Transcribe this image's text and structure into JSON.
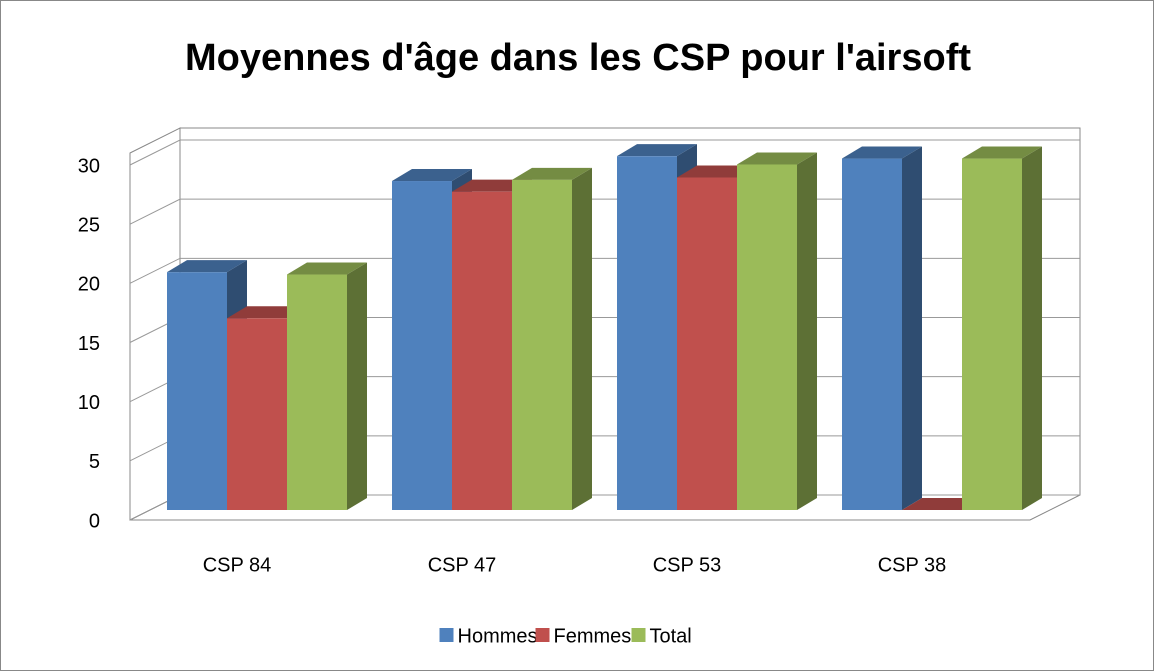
{
  "chart_data": {
    "type": "bar3d",
    "title": "Moyennes d'âge dans les CSP pour l'airsoft",
    "categories": [
      "CSP 84",
      "CSP 47",
      "CSP 53",
      "CSP 38"
    ],
    "series": [
      {
        "name": "Hommes",
        "color": "#4f81bd",
        "values": [
          20.1,
          27.8,
          29.9,
          29.7
        ]
      },
      {
        "name": "Femmes",
        "color": "#c0504d",
        "values": [
          16.2,
          26.9,
          28.1,
          0
        ]
      },
      {
        "name": "Total",
        "color": "#9bbb59",
        "values": [
          19.9,
          27.9,
          29.2,
          29.7
        ]
      }
    ],
    "ylim": [
      0,
      30
    ],
    "yticks": [
      0,
      5,
      10,
      15,
      20,
      25,
      30
    ],
    "grid": true,
    "legend": "bottom"
  }
}
